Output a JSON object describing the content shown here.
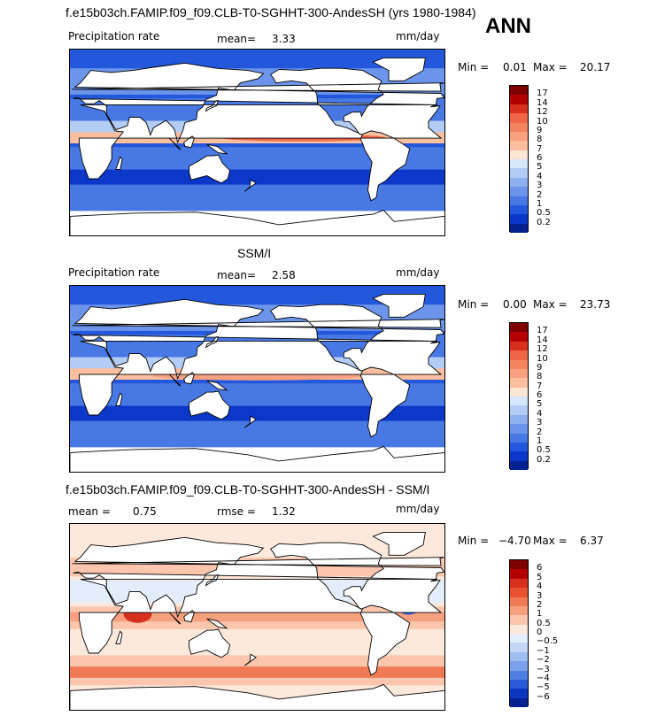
{
  "header": {
    "title": "f.e15b03ch.FAMIP.f09_f09.CLB-T0-SGHHT-300-AndesSH (yrs 1980-1984)",
    "season": "ANN"
  },
  "panels": [
    {
      "label_left": "Precipitation rate",
      "mean_label": "mean=",
      "mean_value": "3.33",
      "units": "mm/day",
      "min_label": "Min =",
      "min_value": "0.01",
      "max_label": "Max =",
      "max_value": "20.17",
      "colorbar_ticks": [
        "17",
        "14",
        "12",
        "10",
        "9",
        "8",
        "7",
        "6",
        "5",
        "4",
        "3",
        "2",
        "1",
        "0.5",
        "0.2"
      ],
      "colors": [
        "#7f0000",
        "#b30000",
        "#d7301f",
        "#ef6548",
        "#f4845f",
        "#f8a080",
        "#fbbfa0",
        "#fde6d6",
        "#d6e6fb",
        "#b3ccf5",
        "#8fb0ef",
        "#6b94ea",
        "#4878e4",
        "#2458dc",
        "#0b38c8",
        "#05208f"
      ],
      "role": "model"
    },
    {
      "label_left": "Precipitation rate",
      "mean_label": "mean=",
      "mean_value": "2.58",
      "units": "mm/day",
      "min_label": "Min =",
      "min_value": "0.00",
      "max_label": "Max =",
      "max_value": "23.73",
      "colorbar_ticks": [
        "17",
        "14",
        "12",
        "10",
        "9",
        "8",
        "7",
        "6",
        "5",
        "4",
        "3",
        "2",
        "1",
        "0.5",
        "0.2"
      ],
      "colors": [
        "#7f0000",
        "#b30000",
        "#d7301f",
        "#ef6548",
        "#f4845f",
        "#f8a080",
        "#fbbfa0",
        "#fde6d6",
        "#d6e6fb",
        "#b3ccf5",
        "#8fb0ef",
        "#6b94ea",
        "#4878e4",
        "#2458dc",
        "#0b38c8",
        "#05208f"
      ],
      "role": "obs"
    },
    {
      "mean_label": "mean =",
      "mean_value": "0.75",
      "rmse_label": "rmse =",
      "rmse_value": "1.32",
      "units": "mm/day",
      "min_label": "Min =",
      "min_value": "−4.70",
      "max_label": "Max =",
      "max_value": "6.37",
      "colorbar_ticks": [
        "6",
        "5",
        "4",
        "3",
        "2",
        "1",
        "0.5",
        "0",
        "−0.5",
        "−1",
        "−2",
        "−3",
        "−4",
        "−5",
        "−6"
      ],
      "colors": [
        "#7f0000",
        "#b30000",
        "#d7301f",
        "#e8512f",
        "#f07a55",
        "#f6a07f",
        "#fbc6ad",
        "#fde8dc",
        "#e4edfb",
        "#c3d6f6",
        "#9fbdf0",
        "#7aa1ea",
        "#4f7fe2",
        "#2a5ad8",
        "#0b36c0",
        "#05208f"
      ],
      "role": "diff"
    }
  ],
  "obs_title": "SSM/I",
  "diff_title": "f.e15b03ch.FAMIP.f09_f09.CLB-T0-SGHHT-300-AndesSH - SSM/I"
}
